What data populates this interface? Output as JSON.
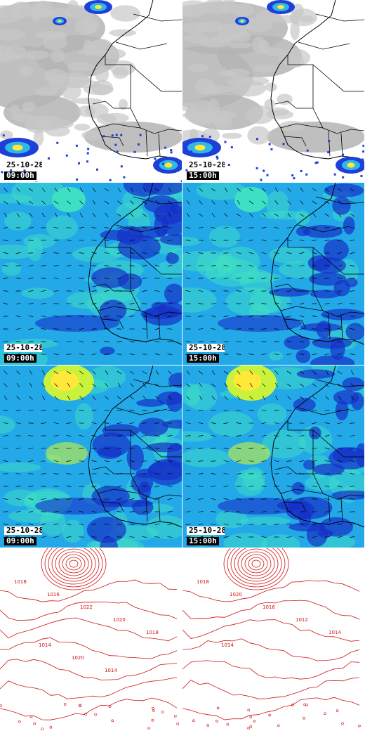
{
  "colors": {
    "cloud": "#b4b4b4",
    "precip_low": "#1f3fd9",
    "precip_mid": "#2fb7e6",
    "precip_high": "#ffe83a",
    "wind_dark": "#1530c8",
    "wind_mid": "#23a9e8",
    "wind_light": "#3ee0c4",
    "wind_strong": "#c9f23c",
    "borders": "#000000",
    "isobars": "#d01010",
    "stamp_bg": "#000000",
    "stamp_fg": "#ffffff"
  },
  "panels": [
    {
      "kind": "satellite-precip",
      "date": "25-10-28",
      "time": "09:00h"
    },
    {
      "kind": "satellite-precip",
      "date": "25-10-28",
      "time": "15:00h"
    },
    {
      "kind": "wind-low",
      "date": "25-10-28",
      "time": "09:00h"
    },
    {
      "kind": "wind-low",
      "date": "25-10-28",
      "time": "15:00h"
    },
    {
      "kind": "wind-high",
      "date": "25-10-28",
      "time": "09:00h"
    },
    {
      "kind": "wind-high",
      "date": "25-10-28",
      "time": "15:00h"
    },
    {
      "kind": "pressure",
      "date": "",
      "time": ""
    },
    {
      "kind": "pressure",
      "date": "",
      "time": ""
    }
  ],
  "isobar_labels_left": [
    "1018",
    "1016",
    "1022",
    "1020",
    "1018",
    "1014",
    "1020",
    "1014"
  ],
  "isobar_labels_right": [
    "1018",
    "1020",
    "1016",
    "1012",
    "1014",
    "1014"
  ]
}
